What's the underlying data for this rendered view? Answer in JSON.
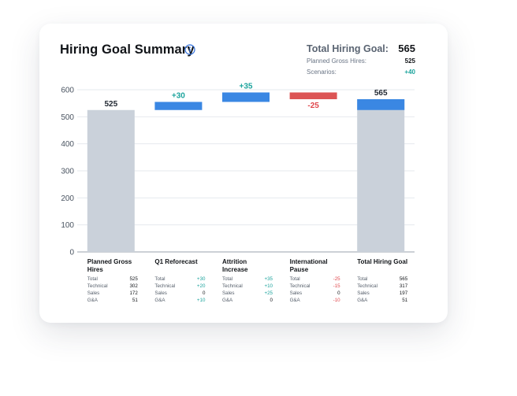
{
  "header": {
    "title": "Hiring Goal Summary",
    "info_icon": "info-icon"
  },
  "summary": {
    "total_label": "Total Hiring Goal:",
    "total_value": "565",
    "rows": [
      {
        "label": "Planned Gross Hires:",
        "value": "525",
        "tone": "neutral"
      },
      {
        "label": "Scenarios:",
        "value": "+40",
        "tone": "pos"
      }
    ]
  },
  "colors": {
    "total_bar": "#cad1da",
    "increase": "#3a87e3",
    "decrease": "#dc5454",
    "positive_text": "#1ba39c",
    "negative_text": "#e0474c"
  },
  "chart_data": {
    "type": "bar",
    "subtype": "waterfall",
    "ylim": [
      0,
      600
    ],
    "yticks": [
      0,
      100,
      200,
      300,
      400,
      500,
      600
    ],
    "grid": "horizontal",
    "steps": [
      {
        "category": "Planned Gross Hires",
        "kind": "total",
        "value": 525,
        "label": "525"
      },
      {
        "category": "Q1 Reforecast",
        "kind": "delta",
        "value": 30,
        "label": "+30"
      },
      {
        "category": "Attrition Increase",
        "kind": "delta",
        "value": 35,
        "label": "+35"
      },
      {
        "category": "International Pause",
        "kind": "delta",
        "value": -25,
        "label": "-25"
      },
      {
        "category": "Total Hiring Goal",
        "kind": "total",
        "value": 565,
        "label": "565"
      }
    ]
  },
  "breakdown": [
    {
      "title": "Planned Gross Hires",
      "rows": [
        {
          "label": "Total",
          "value": "525",
          "tone": "neutral"
        },
        {
          "label": "Technical",
          "value": "302",
          "tone": "neutral"
        },
        {
          "label": "Sales",
          "value": "172",
          "tone": "neutral"
        },
        {
          "label": "G&A",
          "value": "51",
          "tone": "neutral"
        }
      ]
    },
    {
      "title": "Q1 Reforecast",
      "rows": [
        {
          "label": "Total",
          "value": "+30",
          "tone": "pos"
        },
        {
          "label": "Technical",
          "value": "+20",
          "tone": "pos"
        },
        {
          "label": "Sales",
          "value": "0",
          "tone": "neutral"
        },
        {
          "label": "G&A",
          "value": "+10",
          "tone": "pos"
        }
      ]
    },
    {
      "title": "Attrition Increase",
      "rows": [
        {
          "label": "Total",
          "value": "+35",
          "tone": "pos"
        },
        {
          "label": "Technical",
          "value": "+10",
          "tone": "pos"
        },
        {
          "label": "Sales",
          "value": "+25",
          "tone": "pos"
        },
        {
          "label": "G&A",
          "value": "0",
          "tone": "neutral"
        }
      ]
    },
    {
      "title": "International Pause",
      "rows": [
        {
          "label": "Total",
          "value": "-25",
          "tone": "neg"
        },
        {
          "label": "Technical",
          "value": "-15",
          "tone": "neg"
        },
        {
          "label": "Sales",
          "value": "0",
          "tone": "neutral"
        },
        {
          "label": "G&A",
          "value": "-10",
          "tone": "neg"
        }
      ]
    },
    {
      "title": "Total Hiring Goal",
      "rows": [
        {
          "label": "Total",
          "value": "565",
          "tone": "neutral"
        },
        {
          "label": "Technical",
          "value": "317",
          "tone": "neutral"
        },
        {
          "label": "Sales",
          "value": "197",
          "tone": "neutral"
        },
        {
          "label": "G&A",
          "value": "51",
          "tone": "neutral"
        }
      ]
    }
  ]
}
